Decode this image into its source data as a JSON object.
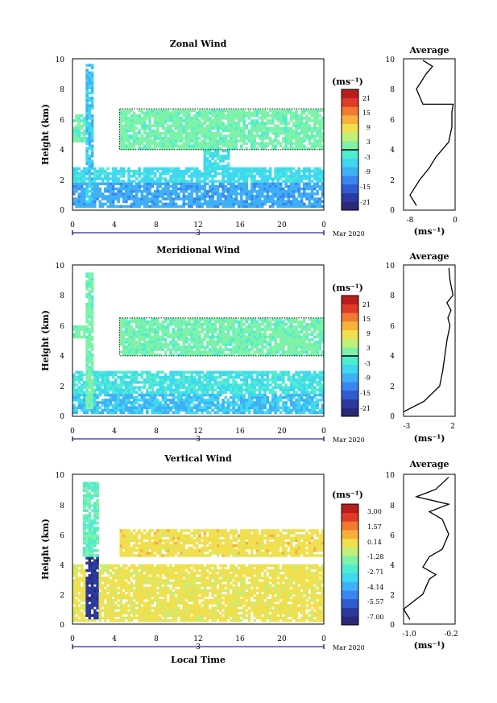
{
  "colors": {
    "scale": [
      "#2a2a78",
      "#2a3aa0",
      "#2f5cd0",
      "#3a86f0",
      "#3fb0f5",
      "#3fd8f0",
      "#50ecd0",
      "#7ef2a8",
      "#bff07a",
      "#f0e050",
      "#f8b03c",
      "#f07a30",
      "#e03a28",
      "#b81e1e"
    ]
  },
  "panels": [
    {
      "title": "Zonal Wind",
      "ylabel": "Height (km)",
      "yticks": [
        "0",
        "2",
        "4",
        "6",
        "8",
        "10"
      ],
      "xticks": [
        "0",
        "4",
        "8",
        "12",
        "16",
        "20",
        "0"
      ],
      "date_label": "3",
      "month_label": "Mar 2020",
      "unit": "(ms⁻¹)",
      "colorbar_ticks": [
        "21",
        "15",
        "9",
        "3",
        "-3",
        "-9",
        "-15",
        "-21"
      ],
      "avg_title": "Average",
      "avg_xticks": [
        "-8",
        "0"
      ],
      "avg_unit": "(ms⁻¹)",
      "avg_yticks": [
        "0",
        "2",
        "4",
        "6",
        "8",
        "10"
      ]
    },
    {
      "title": "Meridional Wind",
      "ylabel": "Height (km)",
      "yticks": [
        "0",
        "2",
        "4",
        "6",
        "8",
        "10"
      ],
      "xticks": [
        "0",
        "4",
        "8",
        "12",
        "16",
        "20",
        "0"
      ],
      "date_label": "3",
      "month_label": "Mar 2020",
      "unit": "(ms⁻¹)",
      "colorbar_ticks": [
        "21",
        "15",
        "9",
        "3",
        "-3",
        "-9",
        "-15",
        "-21"
      ],
      "avg_title": "Average",
      "avg_xticks": [
        "-3",
        "2"
      ],
      "avg_unit": "(ms⁻¹)",
      "avg_yticks": [
        "0",
        "2",
        "4",
        "6",
        "8",
        "10"
      ]
    },
    {
      "title": "Vertical Wind",
      "ylabel": "Height (km)",
      "yticks": [
        "0",
        "2",
        "4",
        "6",
        "8",
        "10"
      ],
      "xticks": [
        "0",
        "4",
        "8",
        "12",
        "16",
        "20",
        "0"
      ],
      "date_label": "3",
      "month_label": "Mar 2020",
      "unit": "(ms⁻¹)",
      "colorbar_ticks": [
        "3.00",
        "1.57",
        "0.14",
        "-1.28",
        "-2.71",
        "-4.14",
        "-5.57",
        "-7.00"
      ],
      "avg_title": "Average",
      "avg_xticks": [
        "-1.0",
        "-0.2"
      ],
      "avg_unit": "(ms⁻¹)",
      "avg_yticks": [
        "0",
        "2",
        "4",
        "6",
        "8",
        "10"
      ],
      "xlabel": "Local Time"
    }
  ],
  "chart_data": [
    {
      "type": "heatmap",
      "title": "Zonal Wind",
      "xlabel": "",
      "ylabel": "Height (km)",
      "xlim": [
        0,
        24
      ],
      "ylim": [
        0,
        10
      ],
      "colorbar_range": [
        -21,
        21
      ],
      "bands": [
        {
          "x": [
            1.3,
            2.0
          ],
          "y": [
            0.5,
            9.6
          ],
          "value": -6
        },
        {
          "x": [
            4.5,
            24.0
          ],
          "y": [
            4.0,
            6.7
          ],
          "value": 1
        },
        {
          "x": [
            0.0,
            1.5
          ],
          "y": [
            4.5,
            6.3
          ],
          "value": 0
        },
        {
          "x": [
            0.0,
            24.0
          ],
          "y": [
            1.8,
            2.9
          ],
          "value": -4
        },
        {
          "x": [
            0.0,
            24.0
          ],
          "y": [
            0.2,
            1.8
          ],
          "value": -8
        },
        {
          "x": [
            12.5,
            15.0
          ],
          "y": [
            2.9,
            4.0
          ],
          "value": -3
        },
        {
          "x": [
            3.0,
            6.0
          ],
          "y": [
            0.3,
            1.5
          ],
          "value": -12
        }
      ],
      "average_profile": {
        "xlim": [
          -8,
          0
        ],
        "x": [
          -6.0,
          -7.0,
          -5.5,
          -4.0,
          -3.0,
          -2.0,
          -1.0,
          -0.5,
          -0.5,
          -0.3,
          -5.0,
          -6.0,
          -4.5,
          -3.5,
          -5.0
        ],
        "y": [
          0.3,
          1.0,
          2.0,
          2.8,
          3.5,
          4.0,
          4.5,
          5.5,
          6.5,
          7.0,
          7.0,
          8.0,
          9.0,
          9.5,
          9.9
        ]
      }
    },
    {
      "type": "heatmap",
      "title": "Meridional Wind",
      "xlabel": "",
      "ylabel": "Height (km)",
      "xlim": [
        0,
        24
      ],
      "ylim": [
        0,
        10
      ],
      "colorbar_range": [
        -21,
        21
      ],
      "bands": [
        {
          "x": [
            1.2,
            2.0
          ],
          "y": [
            0.5,
            9.5
          ],
          "value": 1
        },
        {
          "x": [
            4.5,
            24.0
          ],
          "y": [
            4.0,
            6.5
          ],
          "value": 1
        },
        {
          "x": [
            0.0,
            1.5
          ],
          "y": [
            5.2,
            6.0
          ],
          "value": 1
        },
        {
          "x": [
            0.0,
            24.0
          ],
          "y": [
            1.5,
            3.0
          ],
          "value": -3
        },
        {
          "x": [
            0.0,
            24.0
          ],
          "y": [
            0.2,
            1.5
          ],
          "value": -6
        }
      ],
      "average_profile": {
        "xlim": [
          -3,
          2
        ],
        "x": [
          -3.0,
          -1.0,
          0.5,
          0.8,
          1.0,
          1.2,
          1.5,
          1.3,
          1.6,
          1.2,
          1.8,
          1.5,
          1.4
        ],
        "y": [
          0.3,
          1.0,
          2.0,
          3.0,
          4.0,
          5.0,
          6.0,
          6.5,
          7.0,
          7.5,
          8.0,
          9.0,
          9.8
        ]
      }
    },
    {
      "type": "heatmap",
      "title": "Vertical Wind",
      "xlabel": "Local Time",
      "ylabel": "Height (km)",
      "xlim": [
        0,
        24
      ],
      "ylim": [
        0,
        10
      ],
      "colorbar_range": [
        -7.0,
        3.0
      ],
      "bands": [
        {
          "x": [
            1.3,
            2.5
          ],
          "y": [
            0.3,
            4.5
          ],
          "value": -6
        },
        {
          "x": [
            1.0,
            2.5
          ],
          "y": [
            4.5,
            9.5
          ],
          "value": -2
        },
        {
          "x": [
            4.5,
            24.0
          ],
          "y": [
            4.5,
            6.3
          ],
          "value": -0.2
        },
        {
          "x": [
            0.0,
            24.0
          ],
          "y": [
            0.1,
            4.0
          ],
          "value": -0.3
        },
        {
          "x": [
            0.0,
            1.3
          ],
          "y": [
            0.2,
            3.0
          ],
          "value": -2.5
        },
        {
          "x": [
            22.5,
            24.0
          ],
          "y": [
            0.2,
            2.5
          ],
          "value": -2.5
        }
      ],
      "average_profile": {
        "xlim": [
          -1.0,
          -0.2
        ],
        "x": [
          -0.9,
          -1.0,
          -0.7,
          -0.6,
          -0.5,
          -0.7,
          -0.6,
          -0.4,
          -0.3,
          -0.4,
          -0.6,
          -0.3,
          -0.8,
          -0.5,
          -0.3
        ],
        "y": [
          0.3,
          1.0,
          2.0,
          3.0,
          3.3,
          3.8,
          4.5,
          5.0,
          6.0,
          7.0,
          7.5,
          8.0,
          8.5,
          9.0,
          9.8
        ]
      }
    }
  ]
}
